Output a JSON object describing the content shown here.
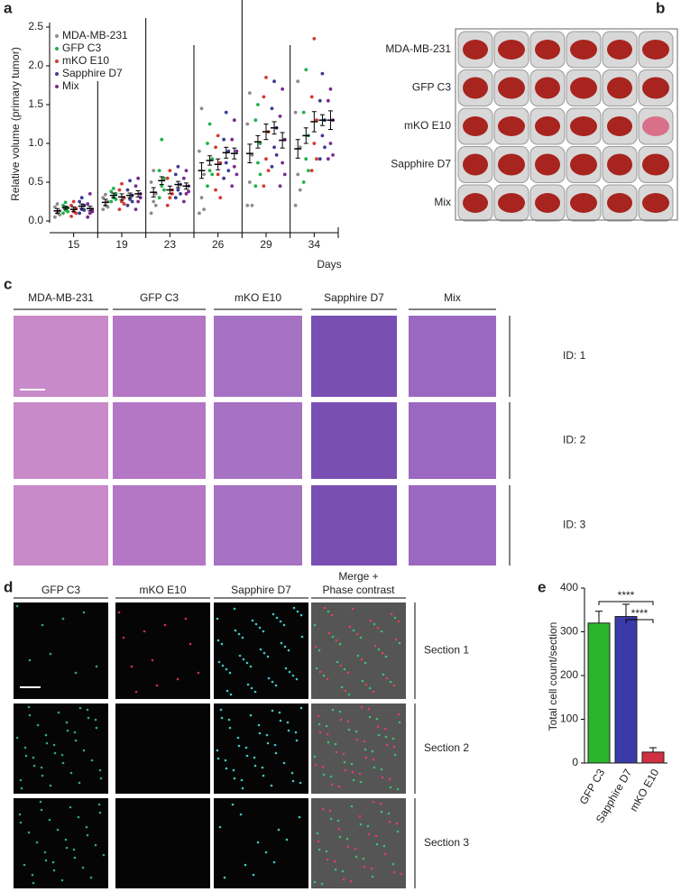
{
  "panel_letters": [
    "a",
    "b",
    "c",
    "d",
    "e"
  ],
  "chart_data": [
    {
      "type": "dotplot",
      "ylabel": "Relative volume (primary tumor)",
      "xlabel": "Days",
      "categories": [
        "15",
        "19",
        "23",
        "26",
        "29",
        "34"
      ],
      "ylim": [
        0,
        2.5
      ],
      "yticks": [
        {
          "value": 0,
          "label": "0.0"
        },
        0.5,
        {
          "value": 1,
          "label": "1.0"
        },
        1.5,
        {
          "value": 2,
          "label": "2.0"
        },
        2.5
      ],
      "series": [
        {
          "name": "MDA-MB-231",
          "color": "#8c8c8c",
          "values": [
            0.13,
            0.24,
            0.37,
            0.65,
            0.87,
            0.93
          ],
          "errors": [
            0.03,
            0.04,
            0.06,
            0.1,
            0.12,
            0.12
          ],
          "points": [
            [
              0.05,
              0.1,
              0.13,
              0.18,
              0.22,
              0.08
            ],
            [
              0.15,
              0.2,
              0.25,
              0.3,
              0.34,
              0.18
            ],
            [
              0.1,
              0.25,
              0.35,
              0.5,
              0.65,
              0.2
            ],
            [
              0.1,
              0.3,
              0.6,
              0.9,
              1.45,
              0.15
            ],
            [
              0.2,
              0.5,
              0.85,
              1.25,
              1.65,
              0.2
            ],
            [
              0.2,
              0.6,
              0.95,
              1.4,
              1.8,
              0.4
            ]
          ]
        },
        {
          "name": "GFP C3",
          "color": "#22b04b",
          "values": [
            0.17,
            0.33,
            0.52,
            0.78,
            1.02,
            1.1
          ],
          "errors": [
            0.02,
            0.03,
            0.05,
            0.06,
            0.08,
            0.1
          ],
          "points": [
            [
              0.1,
              0.14,
              0.17,
              0.2,
              0.24,
              0.12
            ],
            [
              0.25,
              0.3,
              0.35,
              0.38,
              0.42,
              0.28
            ],
            [
              0.3,
              0.45,
              0.55,
              0.65,
              1.05,
              0.4
            ],
            [
              0.45,
              0.65,
              0.8,
              1.0,
              1.25,
              0.6
            ],
            [
              0.45,
              0.75,
              1.0,
              1.3,
              1.5,
              0.6
            ],
            [
              0.5,
              0.8,
              1.1,
              1.4,
              1.95,
              0.65
            ]
          ]
        },
        {
          "name": "mKO E10",
          "color": "#d43a2f",
          "values": [
            0.15,
            0.31,
            0.4,
            0.73,
            1.15,
            1.28
          ],
          "errors": [
            0.03,
            0.04,
            0.05,
            0.07,
            0.1,
            0.13
          ],
          "points": [
            [
              0.06,
              0.12,
              0.16,
              0.2,
              0.25,
              0.1
            ],
            [
              0.15,
              0.25,
              0.3,
              0.4,
              0.48,
              0.22
            ],
            [
              0.2,
              0.3,
              0.4,
              0.55,
              0.65,
              0.35
            ],
            [
              0.4,
              0.6,
              0.75,
              0.95,
              1.1,
              0.3
            ],
            [
              0.45,
              0.8,
              1.15,
              1.6,
              1.85,
              0.65
            ],
            [
              0.65,
              1.0,
              1.3,
              1.6,
              2.35,
              0.8
            ]
          ]
        },
        {
          "name": "Sapphire D7",
          "color": "#3b3b95",
          "values": [
            0.19,
            0.33,
            0.47,
            0.88,
            1.2,
            1.3
          ],
          "errors": [
            0.03,
            0.03,
            0.04,
            0.07,
            0.08,
            0.07
          ],
          "points": [
            [
              0.1,
              0.15,
              0.2,
              0.25,
              0.3,
              0.14
            ],
            [
              0.2,
              0.28,
              0.33,
              0.4,
              0.52,
              0.25
            ],
            [
              0.3,
              0.4,
              0.47,
              0.6,
              0.7,
              0.35
            ],
            [
              0.55,
              0.75,
              0.9,
              1.05,
              1.4,
              0.65
            ],
            [
              0.7,
              0.95,
              1.2,
              1.45,
              1.8,
              0.85
            ],
            [
              0.8,
              1.1,
              1.3,
              1.55,
              1.9,
              0.95
            ]
          ]
        },
        {
          "name": "Mix",
          "color": "#7b2a8e",
          "values": [
            0.16,
            0.35,
            0.45,
            0.87,
            1.04,
            1.3
          ],
          "errors": [
            0.03,
            0.04,
            0.04,
            0.07,
            0.1,
            0.12
          ],
          "points": [
            [
              0.05,
              0.1,
              0.15,
              0.22,
              0.35,
              0.12
            ],
            [
              0.15,
              0.25,
              0.35,
              0.45,
              0.55,
              0.3
            ],
            [
              0.25,
              0.35,
              0.45,
              0.55,
              0.65,
              0.38
            ],
            [
              0.45,
              0.7,
              0.9,
              1.05,
              1.3,
              0.6
            ],
            [
              0.45,
              0.75,
              1.05,
              1.35,
              1.7,
              0.6
            ],
            [
              0.8,
              1.0,
              1.3,
              1.55,
              1.7,
              0.85
            ]
          ]
        }
      ]
    },
    {
      "type": "bar",
      "ylabel": "Total cell count/section",
      "categories": [
        "GFP C3",
        "Sapphire D7",
        "mKO E10"
      ],
      "values": [
        320,
        335,
        25
      ],
      "errors": [
        27,
        28,
        10
      ],
      "colors": [
        "#2bb52b",
        "#3a3aa8",
        "#d03040"
      ],
      "ylim": [
        0,
        400
      ],
      "yticks": [
        0,
        100,
        200,
        300,
        400
      ],
      "annotations": [
        "****",
        "****"
      ]
    }
  ],
  "b_rows": [
    "MDA-MB-231",
    "GFP C3",
    "mKO E10",
    "Sapphire D7",
    "Mix"
  ],
  "c_columns": [
    "MDA-MB-231",
    "GFP C3",
    "mKO E10",
    "Sapphire D7",
    "Mix"
  ],
  "c_rows": [
    "ID: 1",
    "ID: 2",
    "ID: 3"
  ],
  "d_columns": [
    [
      "GFP C3"
    ],
    [
      "mKO E10"
    ],
    [
      "Sapphire D7"
    ],
    [
      "Merge +",
      "Phase contrast"
    ]
  ],
  "d_rows": [
    "Section 1",
    "Section 2",
    "Section 3"
  ]
}
